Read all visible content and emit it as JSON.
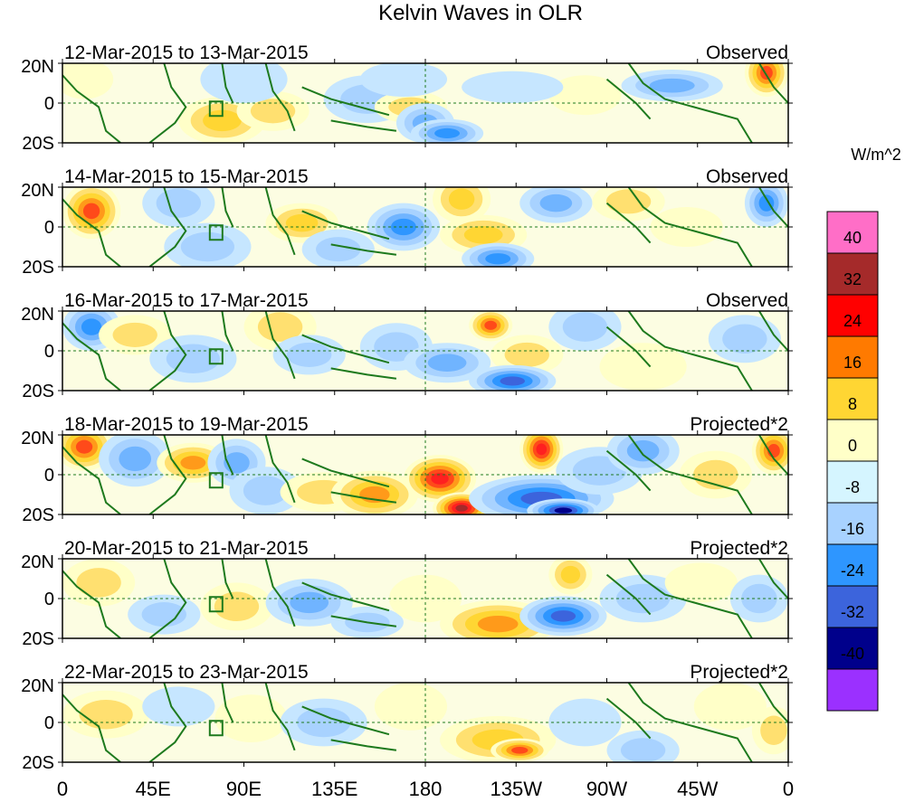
{
  "title": "Kelvin Waves in OLR",
  "units_label": "W/m^2",
  "lat_labels": [
    "20N",
    "0",
    "20S"
  ],
  "lon_labels": [
    "0",
    "45E",
    "90E",
    "135E",
    "180",
    "135W",
    "90W",
    "45W",
    "0"
  ],
  "panels": [
    {
      "date_range": "12-Mar-2015 to 13-Mar-2015",
      "type_label": "Observed"
    },
    {
      "date_range": "14-Mar-2015 to 15-Mar-2015",
      "type_label": "Observed"
    },
    {
      "date_range": "16-Mar-2015 to 17-Mar-2015",
      "type_label": "Observed"
    },
    {
      "date_range": "18-Mar-2015 to 19-Mar-2015",
      "type_label": "Projected*2"
    },
    {
      "date_range": "20-Mar-2015 to 21-Mar-2015",
      "type_label": "Projected*2"
    },
    {
      "date_range": "22-Mar-2015 to 23-Mar-2015",
      "type_label": "Projected*2"
    }
  ],
  "colorbar": {
    "colors": [
      "#ff6ec7",
      "#a52a2a",
      "#ff0000",
      "#ff7a00",
      "#ffd633",
      "#ffffc8",
      "#d5f5ff",
      "#a8d2ff",
      "#2e96ff",
      "#3c64dc",
      "#00008b",
      "#9b30ff"
    ],
    "labels": [
      "40",
      "32",
      "24",
      "16",
      "8",
      "0",
      "-8",
      "-16",
      "-24",
      "-32",
      "-40"
    ]
  },
  "colors": {
    "coast": "#1e7a1e",
    "ocean_base": "#fcfde2",
    "orange": "#ff8c1a",
    "red": "#ff2020",
    "dark_red": "#a52a2a",
    "light_blue": "#a8d2ff",
    "blue": "#2e96ff",
    "deep_blue": "#3c64dc",
    "navy": "#00008b"
  }
}
